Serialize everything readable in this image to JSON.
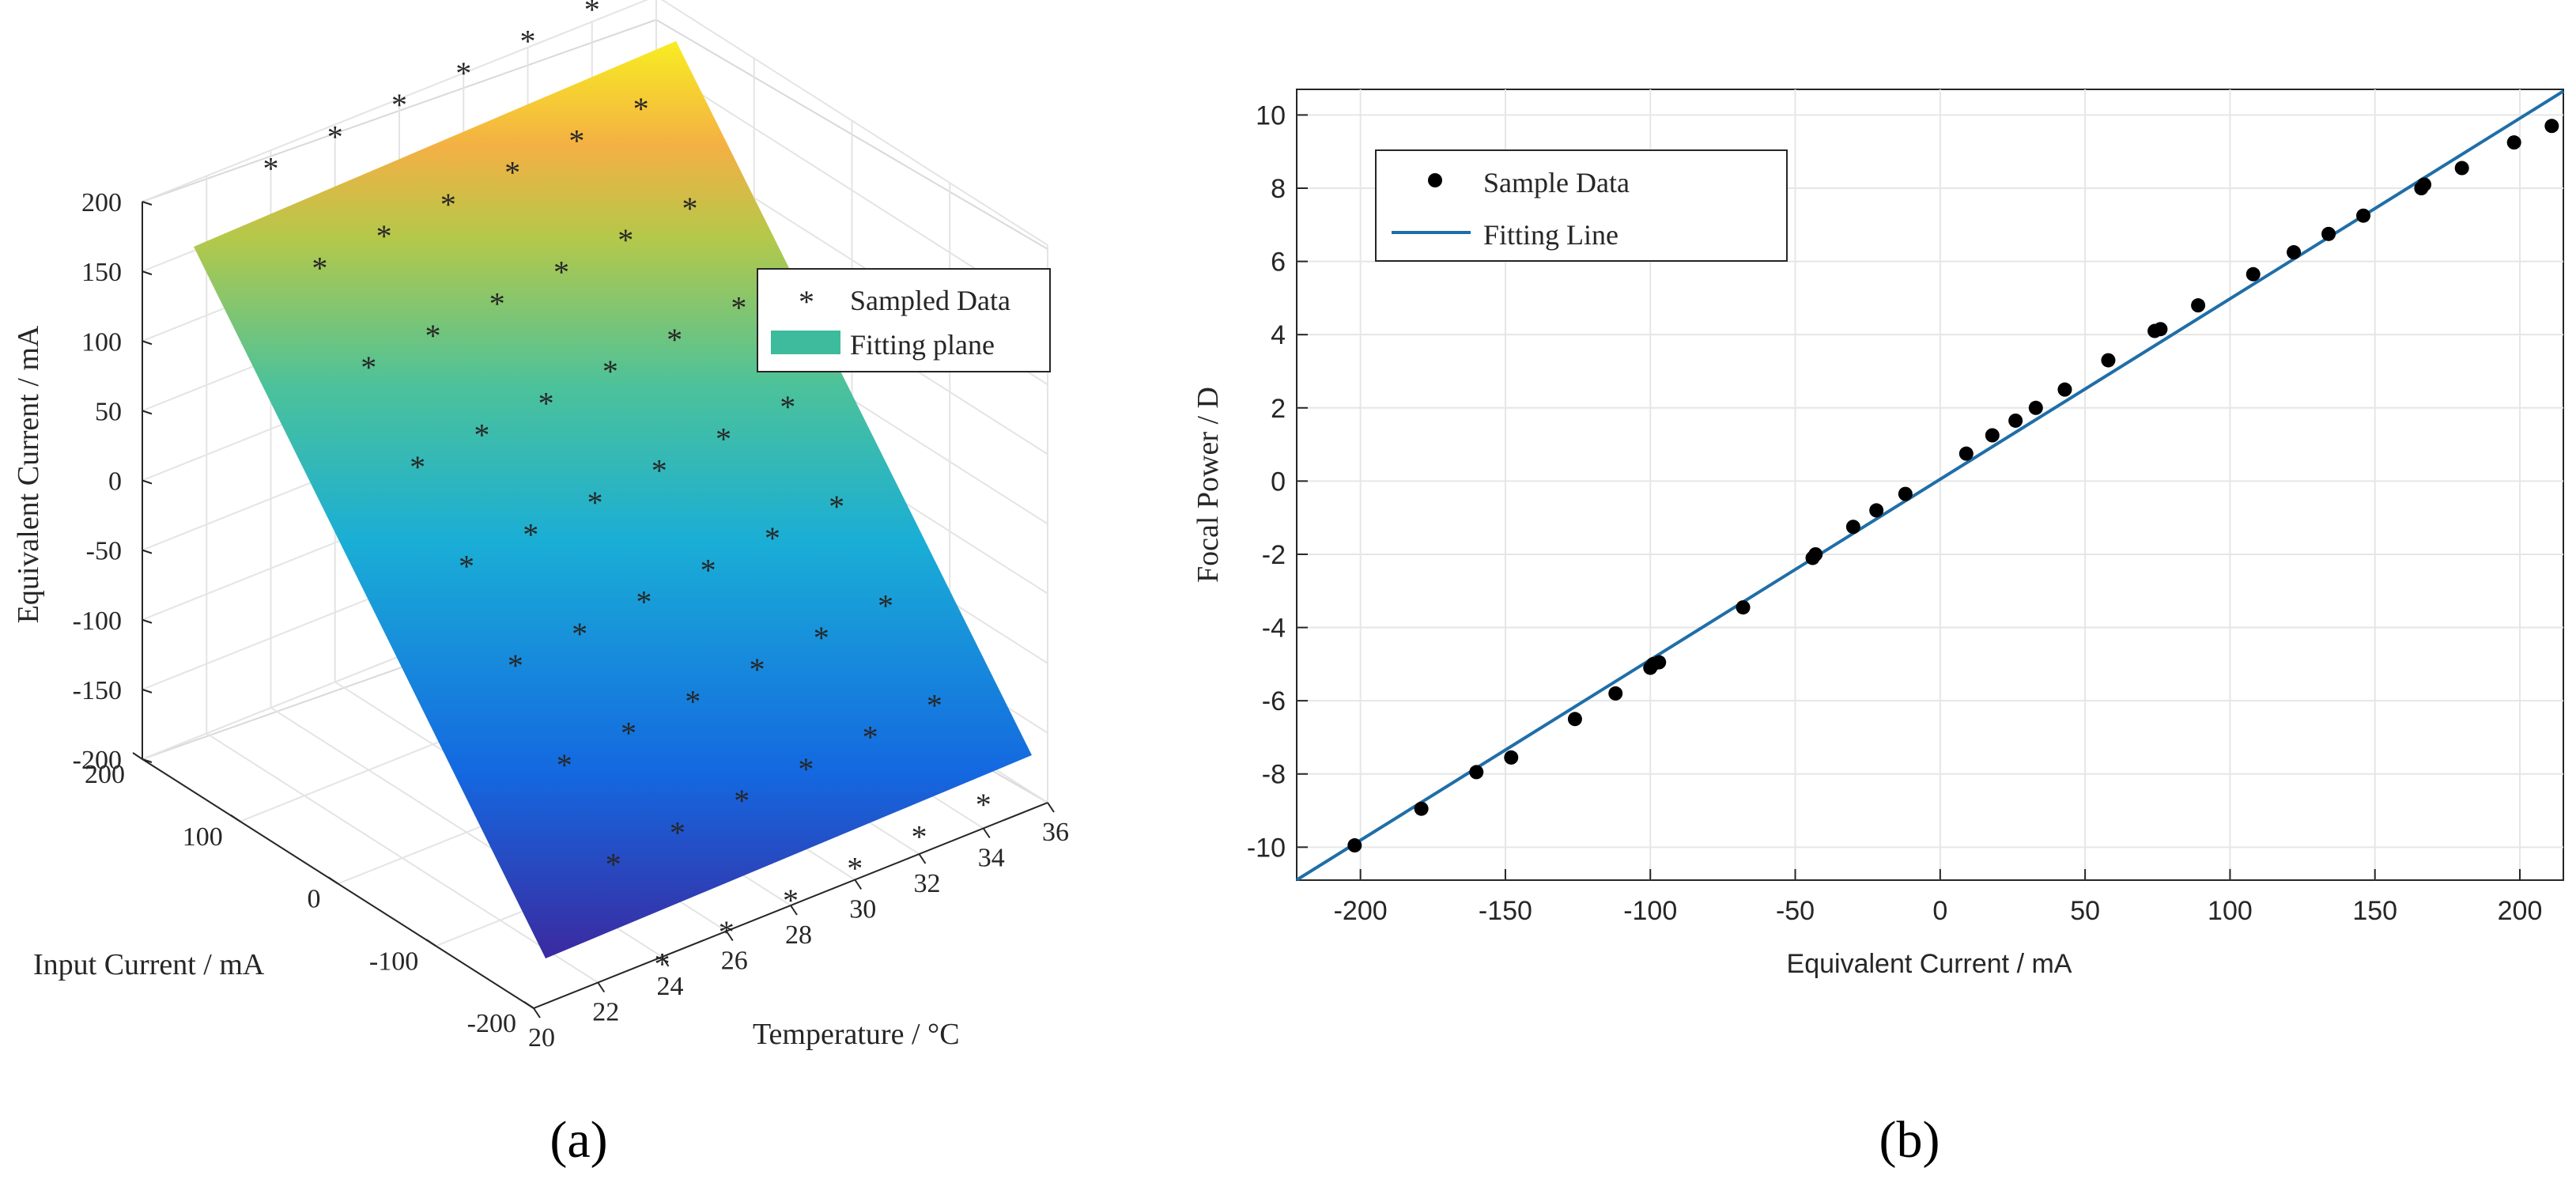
{
  "colors": {
    "fit_line": "#1f6ea8",
    "marker": "#000000",
    "grid": "#e6e6e6",
    "axis": "#262626",
    "legend_patch": "#3dbb9c",
    "plane_low": "#3b2aa0",
    "plane_mid": "#1fb7b0",
    "plane_high": "#f8f020"
  },
  "chart_data": [
    {
      "id": "a",
      "type": "surface3d",
      "panel_label": "(a)",
      "xlabel": "Temperature / °C",
      "ylabel": "Input Current / mA",
      "zlabel": "Equivalent Current / mA",
      "x_ticks": [
        "20",
        "22",
        "24",
        "26",
        "28",
        "30",
        "32",
        "34",
        "36"
      ],
      "y_ticks": [
        "-200",
        "-100",
        "0",
        "100",
        "200"
      ],
      "z_ticks": [
        "-200",
        "-150",
        "-100",
        "-50",
        "0",
        "50",
        "100",
        "150",
        "200"
      ],
      "xlim": [
        20,
        36
      ],
      "ylim": [
        -200,
        200
      ],
      "zlim": [
        -200,
        200
      ],
      "legend": [
        {
          "label": "Sampled Data",
          "kind": "marker"
        },
        {
          "label": "Fitting plane",
          "kind": "patch"
        }
      ],
      "fitting_plane": {
        "equation": "z = 0.98*y + 2.2*(x - 28)"
      },
      "samples": [
        {
          "x": 34,
          "y": -200
        },
        {
          "x": 32,
          "y": -200
        },
        {
          "x": 30,
          "y": -200
        },
        {
          "x": 28,
          "y": -200
        },
        {
          "x": 26,
          "y": -200
        },
        {
          "x": 24,
          "y": -200
        },
        {
          "x": 34,
          "y": -150
        },
        {
          "x": 32,
          "y": -150
        },
        {
          "x": 30,
          "y": -150
        },
        {
          "x": 28,
          "y": -150
        },
        {
          "x": 26,
          "y": -150
        },
        {
          "x": 24,
          "y": -150
        },
        {
          "x": 34,
          "y": -100
        },
        {
          "x": 32,
          "y": -100
        },
        {
          "x": 30,
          "y": -100
        },
        {
          "x": 28,
          "y": -100
        },
        {
          "x": 26,
          "y": -100
        },
        {
          "x": 24,
          "y": -100
        },
        {
          "x": 34,
          "y": -50
        },
        {
          "x": 32,
          "y": -50
        },
        {
          "x": 30,
          "y": -50
        },
        {
          "x": 28,
          "y": -50
        },
        {
          "x": 26,
          "y": -50
        },
        {
          "x": 24,
          "y": -50
        },
        {
          "x": 34,
          "y": 0
        },
        {
          "x": 32,
          "y": 0
        },
        {
          "x": 30,
          "y": 0
        },
        {
          "x": 28,
          "y": 0
        },
        {
          "x": 26,
          "y": 0
        },
        {
          "x": 24,
          "y": 0
        },
        {
          "x": 34,
          "y": 50
        },
        {
          "x": 32,
          "y": 50
        },
        {
          "x": 30,
          "y": 50
        },
        {
          "x": 28,
          "y": 50
        },
        {
          "x": 26,
          "y": 50
        },
        {
          "x": 24,
          "y": 50
        },
        {
          "x": 34,
          "y": 100
        },
        {
          "x": 32,
          "y": 100
        },
        {
          "x": 30,
          "y": 100
        },
        {
          "x": 28,
          "y": 100
        },
        {
          "x": 26,
          "y": 100
        },
        {
          "x": 24,
          "y": 100
        },
        {
          "x": 34,
          "y": 150
        },
        {
          "x": 32,
          "y": 150
        },
        {
          "x": 30,
          "y": 150
        },
        {
          "x": 28,
          "y": 150
        },
        {
          "x": 26,
          "y": 150
        },
        {
          "x": 24,
          "y": 150
        },
        {
          "x": 34,
          "y": 200
        },
        {
          "x": 32,
          "y": 200
        },
        {
          "x": 30,
          "y": 200
        },
        {
          "x": 28,
          "y": 200
        },
        {
          "x": 26,
          "y": 200
        },
        {
          "x": 24,
          "y": 200
        }
      ]
    },
    {
      "id": "b",
      "type": "scatter",
      "panel_label": "(b)",
      "xlabel": "Equivalent Current / mA",
      "ylabel": "Focal Power / D",
      "xlim": [
        -222,
        215
      ],
      "ylim": [
        -10.9,
        10.7
      ],
      "x_ticks": [
        -200,
        -150,
        -100,
        -50,
        0,
        50,
        100,
        150,
        200
      ],
      "y_ticks": [
        -10,
        -8,
        -6,
        -4,
        -2,
        0,
        2,
        4,
        6,
        8,
        10
      ],
      "grid": true,
      "legend": [
        {
          "label": "Sample Data",
          "kind": "marker"
        },
        {
          "label": "Fitting Line",
          "kind": "line"
        }
      ],
      "fitting_line": {
        "slope": 0.0493,
        "intercept": 0.05
      },
      "points": [
        {
          "x": -202,
          "y": -9.95
        },
        {
          "x": -179,
          "y": -8.95
        },
        {
          "x": -160,
          "y": -7.95
        },
        {
          "x": -148,
          "y": -7.55
        },
        {
          "x": -126,
          "y": -6.5
        },
        {
          "x": -112,
          "y": -5.8
        },
        {
          "x": -100,
          "y": -5.1
        },
        {
          "x": -99,
          "y": -5.0
        },
        {
          "x": -97,
          "y": -4.95
        },
        {
          "x": -68,
          "y": -3.45
        },
        {
          "x": -44,
          "y": -2.1
        },
        {
          "x": -43,
          "y": -2.0
        },
        {
          "x": -30,
          "y": -1.25
        },
        {
          "x": -22,
          "y": -0.8
        },
        {
          "x": -12,
          "y": -0.35
        },
        {
          "x": 9,
          "y": 0.75
        },
        {
          "x": 18,
          "y": 1.25
        },
        {
          "x": 26,
          "y": 1.65
        },
        {
          "x": 33,
          "y": 2.0
        },
        {
          "x": 43,
          "y": 2.5
        },
        {
          "x": 58,
          "y": 3.3
        },
        {
          "x": 74,
          "y": 4.1
        },
        {
          "x": 76,
          "y": 4.15
        },
        {
          "x": 89,
          "y": 4.8
        },
        {
          "x": 108,
          "y": 5.65
        },
        {
          "x": 122,
          "y": 6.25
        },
        {
          "x": 134,
          "y": 6.75
        },
        {
          "x": 146,
          "y": 7.25
        },
        {
          "x": 166,
          "y": 8.0
        },
        {
          "x": 167,
          "y": 8.1
        },
        {
          "x": 180,
          "y": 8.55
        },
        {
          "x": 198,
          "y": 9.25
        },
        {
          "x": 211,
          "y": 9.7
        }
      ]
    }
  ]
}
